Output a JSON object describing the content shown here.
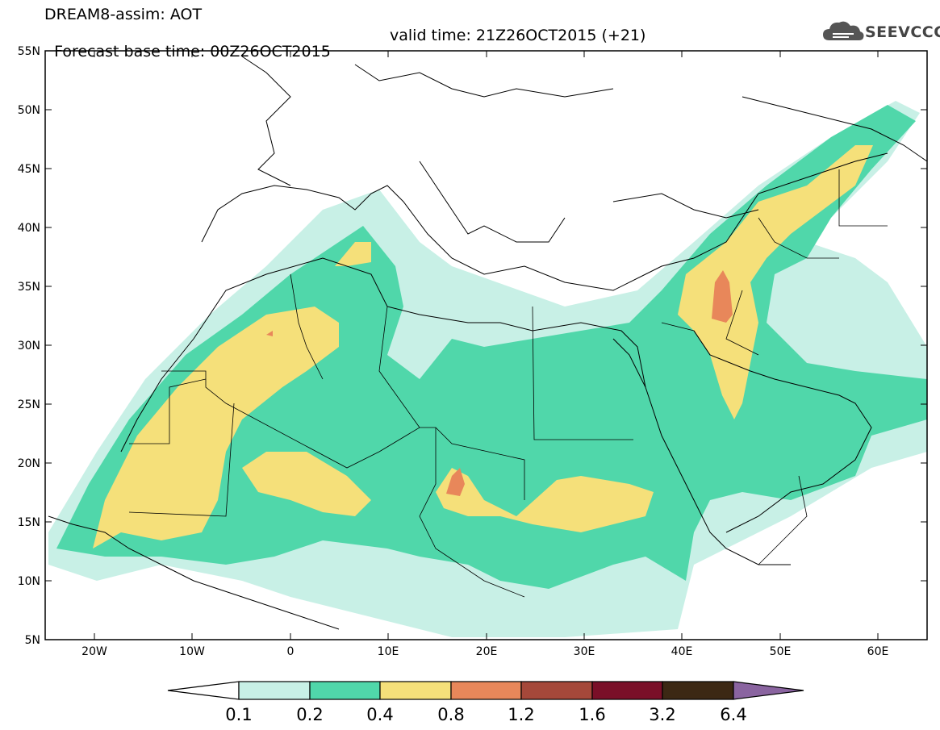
{
  "header": {
    "line1": "DREAM8-assim: AOT",
    "base_time": "Forecast base time: 00Z26OCT2015",
    "valid_time": "valid time: 21Z26OCT2015 (+21)",
    "logo_text": "SEEVCCC"
  },
  "map": {
    "lat_labels": [
      "55N",
      "50N",
      "45N",
      "40N",
      "35N",
      "30N",
      "25N",
      "20N",
      "15N",
      "10N",
      "5N"
    ],
    "lon_labels": [
      "20W",
      "10W",
      "0",
      "10E",
      "20E",
      "30E",
      "40E",
      "50E",
      "60E"
    ],
    "extent": {
      "lon": [
        -25,
        65
      ],
      "lat": [
        5,
        55
      ]
    }
  },
  "colorbar": {
    "labels": [
      "0.1",
      "0.2",
      "0.4",
      "0.8",
      "1.2",
      "1.6",
      "3.2",
      "6.4"
    ],
    "colors": [
      "#ffffff",
      "#c8f0e6",
      "#50d7aa",
      "#f5e07a",
      "#e8875a",
      "#a5483a",
      "#7a0f28",
      "#3c2814",
      "#8a64a0"
    ]
  }
}
